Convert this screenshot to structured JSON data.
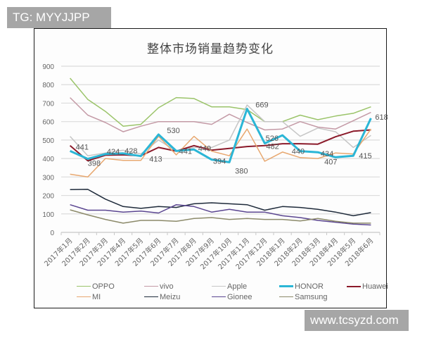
{
  "watermarks": {
    "top": "TG: MYYJJPP",
    "bottom": "www.tcsyzd.com"
  },
  "chart_data": {
    "type": "line",
    "title": "整体市场销量趋势变化",
    "xlabel": "",
    "ylabel": "",
    "ylim": [
      0,
      900
    ],
    "yticks": [
      0,
      100,
      200,
      300,
      400,
      500,
      600,
      700,
      800,
      900
    ],
    "grid": true,
    "legend_position": "bottom",
    "categories": [
      "2017年1月",
      "2017年2月",
      "2017年3月",
      "2017年4月",
      "2017年5月",
      "2017年6月",
      "2017年7月",
      "2017年8月",
      "2017年9月",
      "2017年10月",
      "2017年11月",
      "2017年12月",
      "2018年1月",
      "2018年2月",
      "2018年3月",
      "2018年4月",
      "2018年5月",
      "2018年6月"
    ],
    "series": [
      {
        "name": "OPPO",
        "color": "#9bc46a",
        "width": 1.5,
        "values": [
          835,
          720,
          655,
          575,
          585,
          675,
          730,
          725,
          680,
          680,
          665,
          600,
          600,
          635,
          610,
          630,
          645,
          680
        ]
      },
      {
        "name": "vivo",
        "color": "#c49aa6",
        "width": 1.5,
        "values": [
          730,
          635,
          595,
          545,
          575,
          600,
          600,
          600,
          585,
          640,
          595,
          555,
          560,
          600,
          570,
          560,
          605,
          650
        ]
      },
      {
        "name": "Apple",
        "color": "#c6c6c6",
        "width": 1.5,
        "values": [
          520,
          415,
          430,
          445,
          425,
          500,
          440,
          460,
          460,
          500,
          690,
          600,
          600,
          520,
          565,
          545,
          460,
          525
        ]
      },
      {
        "name": "HONOR",
        "color": "#2bb6d6",
        "width": 3,
        "values": [
          441,
          398,
          424,
          428,
          413,
          530,
          441,
          449,
          394,
          380,
          669,
          482,
          526,
          440,
          434,
          407,
          415,
          618
        ]
      },
      {
        "name": "Huawei",
        "color": "#8b1a2a",
        "width": 2,
        "values": [
          470,
          388,
          418,
          420,
          415,
          460,
          440,
          470,
          445,
          455,
          465,
          470,
          480,
          480,
          478,
          518,
          548,
          555
        ]
      },
      {
        "name": "MI",
        "color": "#e8a870",
        "width": 1.5,
        "values": [
          315,
          300,
          400,
          390,
          390,
          520,
          420,
          520,
          440,
          415,
          560,
          385,
          435,
          405,
          400,
          430,
          425,
          560
        ]
      },
      {
        "name": "Meizu",
        "color": "#1e2a3a",
        "width": 1.5,
        "values": [
          232,
          233,
          180,
          140,
          130,
          140,
          135,
          155,
          160,
          155,
          150,
          120,
          140,
          135,
          125,
          110,
          90,
          107
        ]
      },
      {
        "name": "Gionee",
        "color": "#5a4590",
        "width": 1.5,
        "values": [
          150,
          120,
          120,
          110,
          115,
          105,
          150,
          140,
          110,
          125,
          110,
          110,
          90,
          80,
          65,
          55,
          45,
          40
        ]
      },
      {
        "name": "Samsung",
        "color": "#8c8a6a",
        "width": 1.5,
        "values": [
          122,
          95,
          70,
          50,
          65,
          65,
          60,
          75,
          80,
          70,
          75,
          70,
          70,
          62,
          75,
          60,
          50,
          50
        ]
      }
    ],
    "annotations": [
      {
        "series": "HONOR",
        "index": 0,
        "text": "441"
      },
      {
        "series": "HONOR",
        "index": 1,
        "text": "398"
      },
      {
        "series": "HONOR",
        "index": 2,
        "text": "424"
      },
      {
        "series": "HONOR",
        "index": 3,
        "text": "428"
      },
      {
        "series": "HONOR",
        "index": 4,
        "text": "413"
      },
      {
        "series": "HONOR",
        "index": 5,
        "text": "530"
      },
      {
        "series": "HONOR",
        "index": 6,
        "text": "441"
      },
      {
        "series": "HONOR",
        "index": 7,
        "text": "449"
      },
      {
        "series": "HONOR",
        "index": 8,
        "text": "394"
      },
      {
        "series": "HONOR",
        "index": 9,
        "text": "380"
      },
      {
        "series": "HONOR",
        "index": 10,
        "text": "669"
      },
      {
        "series": "HONOR",
        "index": 11,
        "text": "482"
      },
      {
        "series": "HONOR",
        "index": 12,
        "text": "526"
      },
      {
        "series": "HONOR",
        "index": 13,
        "text": "440"
      },
      {
        "series": "HONOR",
        "index": 14,
        "text": "434"
      },
      {
        "series": "HONOR",
        "index": 15,
        "text": "407"
      },
      {
        "series": "HONOR",
        "index": 16,
        "text": "415"
      },
      {
        "series": "HONOR",
        "index": 17,
        "text": "618"
      }
    ]
  }
}
